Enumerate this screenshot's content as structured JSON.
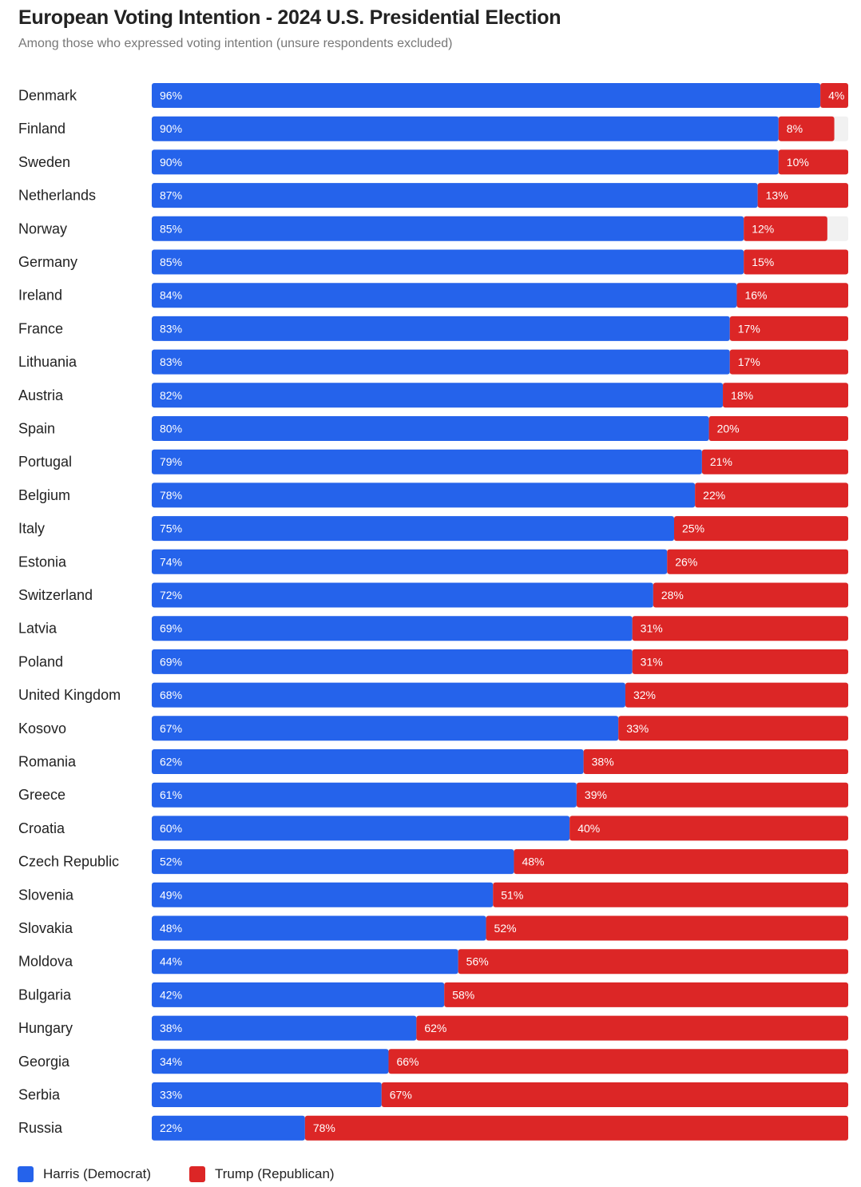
{
  "title": "European Voting Intention - 2024 U.S. Presidential Election",
  "subtitle": "Among those who expressed voting intention (unsure respondents excluded)",
  "colors": {
    "harris": "#2563eb",
    "trump": "#dc2626",
    "track": "#f1f1f1"
  },
  "legend": {
    "harris": "Harris (Democrat)",
    "trump": "Trump (Republican)"
  },
  "chart_data": {
    "type": "bar",
    "orientation": "horizontal",
    "stacked": true,
    "xlim": [
      0,
      100
    ],
    "categories": [
      "Denmark",
      "Finland",
      "Sweden",
      "Netherlands",
      "Norway",
      "Germany",
      "Ireland",
      "France",
      "Lithuania",
      "Austria",
      "Spain",
      "Portugal",
      "Belgium",
      "Italy",
      "Estonia",
      "Switzerland",
      "Latvia",
      "Poland",
      "United Kingdom",
      "Kosovo",
      "Romania",
      "Greece",
      "Croatia",
      "Czech Republic",
      "Slovenia",
      "Slovakia",
      "Moldova",
      "Bulgaria",
      "Hungary",
      "Georgia",
      "Serbia",
      "Russia"
    ],
    "series": [
      {
        "name": "Harris (Democrat)",
        "values": [
          96,
          90,
          90,
          87,
          85,
          85,
          84,
          83,
          83,
          82,
          80,
          79,
          78,
          75,
          74,
          72,
          69,
          69,
          68,
          67,
          62,
          61,
          60,
          52,
          49,
          48,
          44,
          42,
          38,
          34,
          33,
          22
        ]
      },
      {
        "name": "Trump (Republican)",
        "values": [
          4,
          8,
          10,
          13,
          12,
          15,
          16,
          17,
          17,
          18,
          20,
          21,
          22,
          25,
          26,
          28,
          31,
          31,
          32,
          33,
          38,
          39,
          40,
          48,
          51,
          52,
          56,
          58,
          62,
          66,
          67,
          78
        ]
      }
    ],
    "labels": {
      "harris": [
        "96%",
        "90%",
        "90%",
        "87%",
        "85%",
        "85%",
        "84%",
        "83%",
        "83%",
        "82%",
        "80%",
        "79%",
        "78%",
        "75%",
        "74%",
        "72%",
        "69%",
        "69%",
        "68%",
        "67%",
        "62%",
        "61%",
        "60%",
        "52%",
        "49%",
        "48%",
        "44%",
        "42%",
        "38%",
        "34%",
        "33%",
        "22%"
      ],
      "trump": [
        "4%",
        "8%",
        "10%",
        "13%",
        "12%",
        "15%",
        "16%",
        "17%",
        "17%",
        "18%",
        "20%",
        "21%",
        "22%",
        "25%",
        "26%",
        "28%",
        "31%",
        "31%",
        "32%",
        "33%",
        "38%",
        "39%",
        "40%",
        "48%",
        "51%",
        "52%",
        "56%",
        "58%",
        "62%",
        "66%",
        "67%",
        "78%"
      ]
    },
    "legend_position": "bottom-left",
    "grid": false
  }
}
